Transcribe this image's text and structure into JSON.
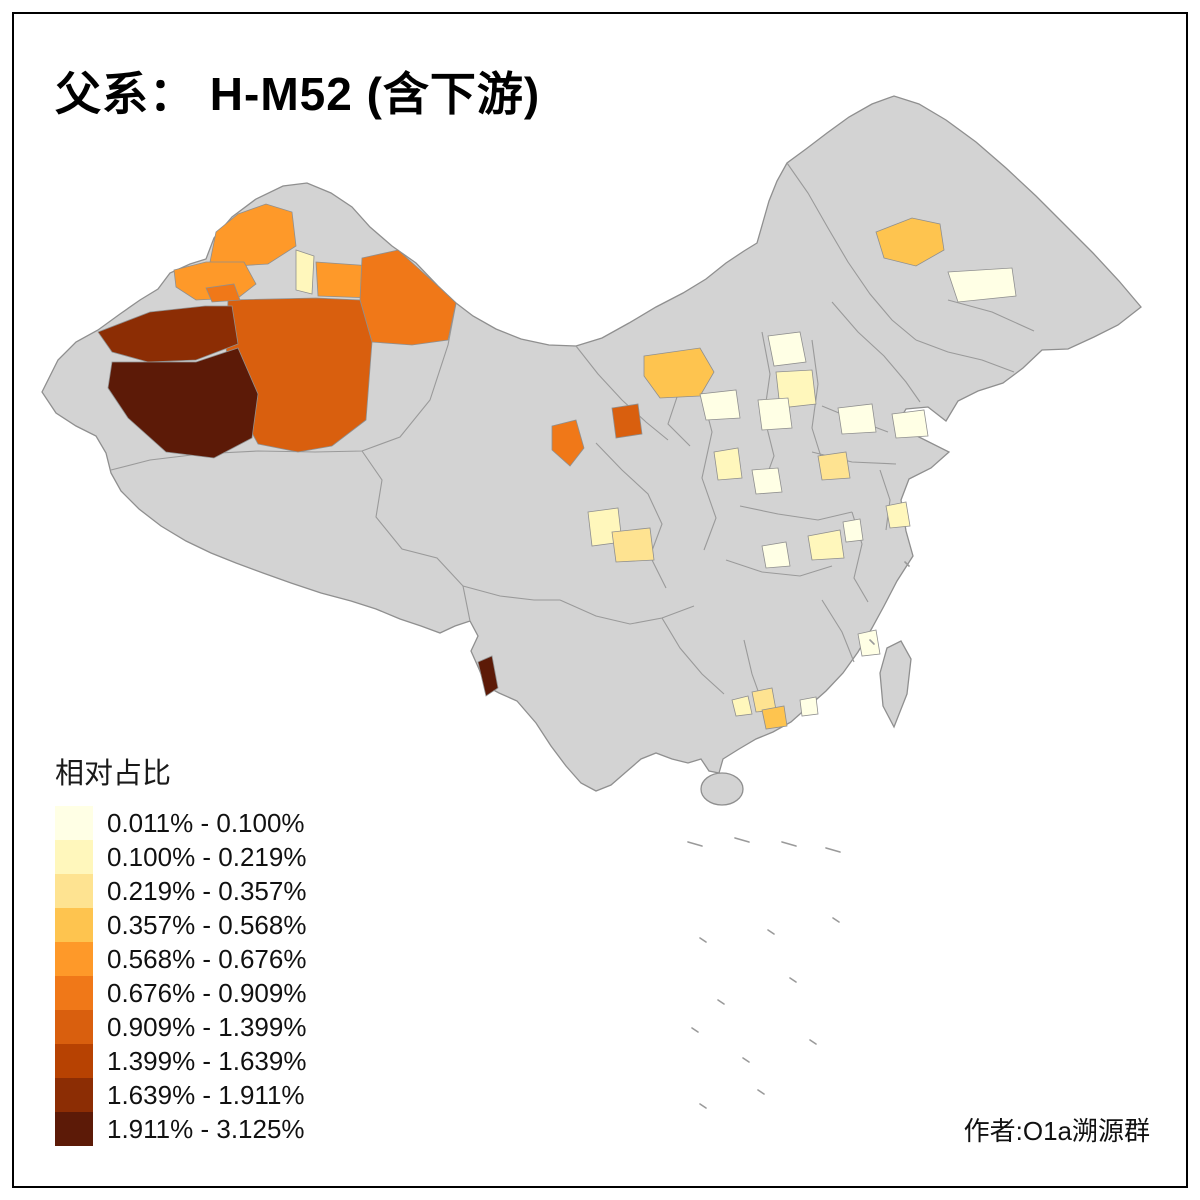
{
  "title": "父系： H-M52 (含下游)",
  "author": "作者:O1a溯源群",
  "legend": {
    "title": "相对占比",
    "bins": [
      {
        "label": "0.011% - 0.100%",
        "color": "#FFFFE5"
      },
      {
        "label": "0.100% - 0.219%",
        "color": "#FFF7BC"
      },
      {
        "label": "0.219% - 0.357%",
        "color": "#FEE391"
      },
      {
        "label": "0.357% - 0.568%",
        "color": "#FEC44F"
      },
      {
        "label": "0.568% - 0.676%",
        "color": "#FE9929"
      },
      {
        "label": "0.676% - 0.909%",
        "color": "#F07818"
      },
      {
        "label": "0.909% - 1.399%",
        "color": "#D95F0E"
      },
      {
        "label": "1.399% - 1.639%",
        "color": "#B74202"
      },
      {
        "label": "1.639% - 1.911%",
        "color": "#8C2D04"
      },
      {
        "label": "1.911% - 3.125%",
        "color": "#5C1A07"
      }
    ]
  },
  "map": {
    "no_data_fill": "#D3D3D3",
    "boundary_color": "#8F8F8F",
    "background": "#FFFFFF"
  }
}
